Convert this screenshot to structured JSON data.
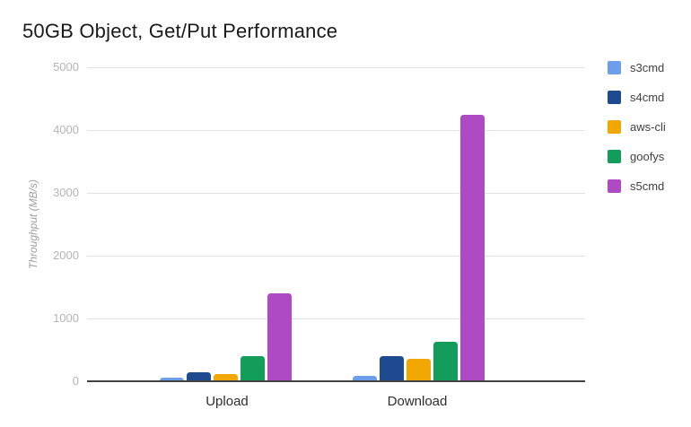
{
  "title": "50GB Object, Get/Put Performance",
  "chart_data": {
    "type": "bar",
    "title": "50GB Object, Get/Put Performance",
    "categories": [
      "Upload",
      "Download"
    ],
    "series": [
      {
        "name": "s3cmd",
        "color": "#6d9eeb",
        "values": [
          60,
          85
        ]
      },
      {
        "name": "s4cmd",
        "color": "#1e4b8f",
        "values": [
          145,
          400
        ]
      },
      {
        "name": "aws-cli",
        "color": "#f1a700",
        "values": [
          115,
          360
        ]
      },
      {
        "name": "goofys",
        "color": "#139d5b",
        "values": [
          395,
          630
        ]
      },
      {
        "name": "s5cmd",
        "color": "#ae4bc4",
        "values": [
          1400,
          4240
        ]
      }
    ],
    "xlabel": "",
    "ylabel": "Throughput (MB/s)",
    "ylim": [
      0,
      5000
    ],
    "yticks": [
      0,
      1000,
      2000,
      3000,
      4000,
      5000
    ],
    "grid": true,
    "legend_position": "right",
    "background_color": "#ffffff",
    "axis_line_color": "#424242",
    "gridline_color": "#e3e3e3"
  }
}
